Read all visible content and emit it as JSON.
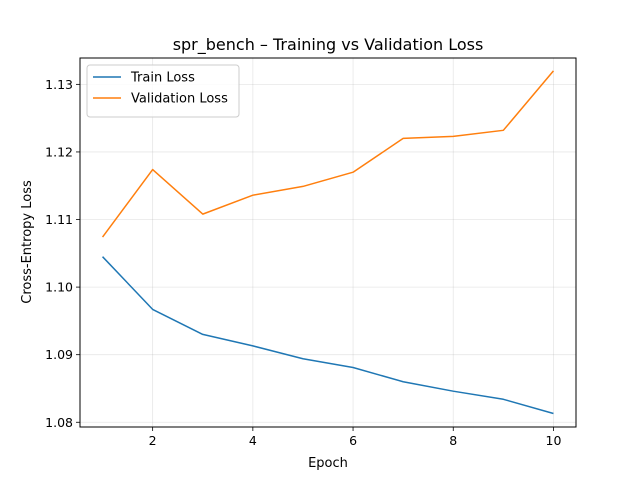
{
  "chart_data": {
    "type": "line",
    "title": "spr_bench – Training vs Validation Loss",
    "xlabel": "Epoch",
    "ylabel": "Cross-Entropy Loss",
    "x": [
      1,
      2,
      3,
      4,
      5,
      6,
      7,
      8,
      9,
      10
    ],
    "xlim": [
      0.55,
      10.45
    ],
    "ylim": [
      1.0793,
      1.1339
    ],
    "xticks": [
      2,
      4,
      6,
      8,
      10
    ],
    "yticks": [
      1.08,
      1.09,
      1.1,
      1.11,
      1.12,
      1.13
    ],
    "grid": true,
    "legend_position": "top-left",
    "series": [
      {
        "name": "Train Loss",
        "color": "#1f77b4",
        "values": [
          1.1045,
          1.0967,
          1.093,
          1.0913,
          1.0894,
          1.0881,
          1.086,
          1.0846,
          1.0834,
          1.0813
        ]
      },
      {
        "name": "Validation Loss",
        "color": "#ff7f0e",
        "values": [
          1.1074,
          1.1174,
          1.1108,
          1.1136,
          1.1149,
          1.117,
          1.122,
          1.1223,
          1.1232,
          1.132
        ]
      }
    ]
  }
}
